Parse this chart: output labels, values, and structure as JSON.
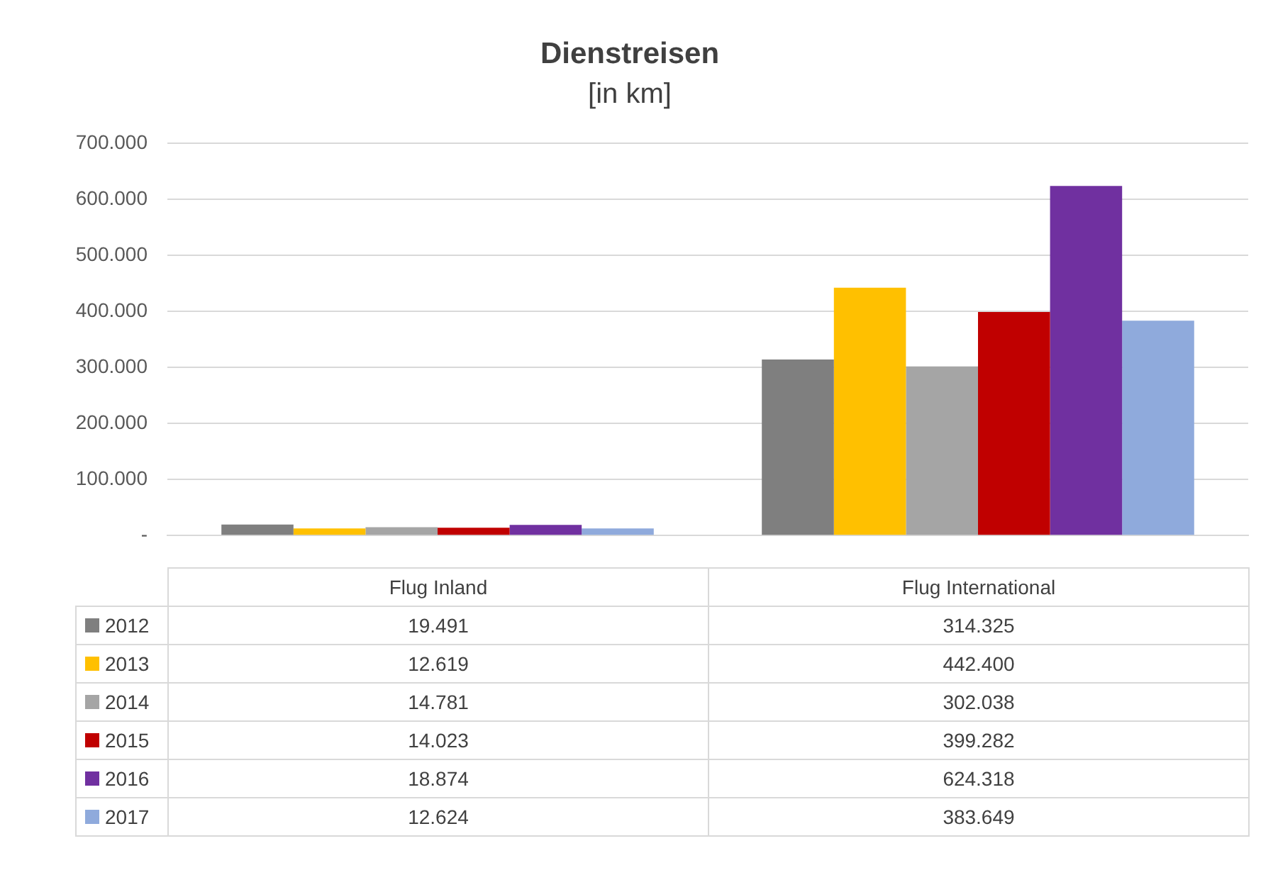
{
  "chart_data": {
    "type": "bar",
    "title": "Dienstreisen",
    "subtitle": "[in km]",
    "categories": [
      "Flug Inland",
      "Flug International"
    ],
    "series": [
      {
        "name": "2012",
        "color": "#7f7f7f",
        "values": [
          19491,
          314325
        ],
        "value_labels": [
          "19.491",
          "314.325"
        ]
      },
      {
        "name": "2013",
        "color": "#ffc000",
        "values": [
          12619,
          442400
        ],
        "value_labels": [
          "12.619",
          "442.400"
        ]
      },
      {
        "name": "2014",
        "color": "#a5a5a5",
        "values": [
          14781,
          302038
        ],
        "value_labels": [
          "14.781",
          "302.038"
        ]
      },
      {
        "name": "2015",
        "color": "#c00000",
        "values": [
          14023,
          399282
        ],
        "value_labels": [
          "14.023",
          "399.282"
        ]
      },
      {
        "name": "2016",
        "color": "#7030a0",
        "values": [
          18874,
          624318
        ],
        "value_labels": [
          "18.874",
          "624.318"
        ]
      },
      {
        "name": "2017",
        "color": "#8faadc",
        "values": [
          12624,
          383649
        ],
        "value_labels": [
          "12.624",
          "383.649"
        ]
      }
    ],
    "ylim": [
      0,
      700000
    ],
    "yticks": [
      {
        "value": 0,
        "label": "-"
      },
      {
        "value": 100000,
        "label": "100.000"
      },
      {
        "value": 200000,
        "label": "200.000"
      },
      {
        "value": 300000,
        "label": "300.000"
      },
      {
        "value": 400000,
        "label": "400.000"
      },
      {
        "value": 500000,
        "label": "500.000"
      },
      {
        "value": 600000,
        "label": "600.000"
      },
      {
        "value": 700000,
        "label": "700.000"
      }
    ],
    "grid": "y",
    "legend": "bottom"
  }
}
